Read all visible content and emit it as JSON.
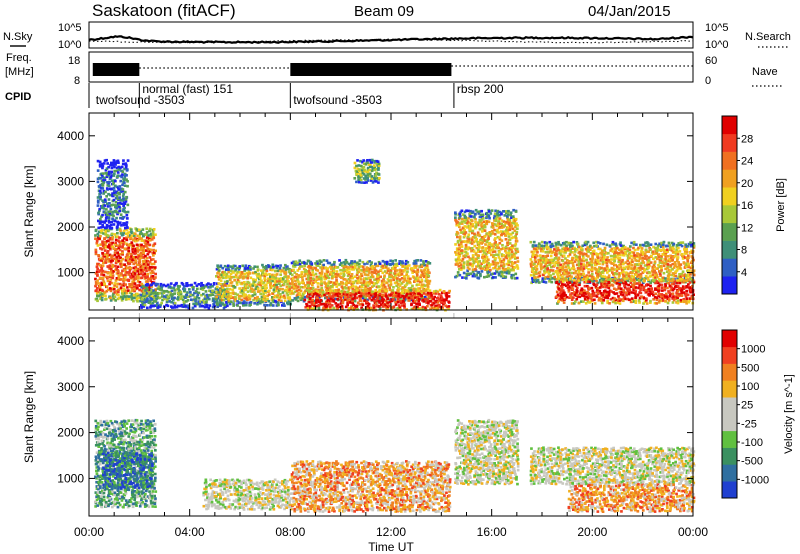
{
  "header": {
    "station": "Saskatoon (fitACF)",
    "beam": "Beam 09",
    "date": "04/Jan/2015"
  },
  "aux_panel": {
    "nsky_label": "N.Sky",
    "nsky_ticks": [
      "10^5",
      "10^0"
    ],
    "nsearch_label": "N.Search",
    "nsearch_ticks": [
      "10^5",
      "10^0"
    ],
    "freq_label_1": "Freq.",
    "freq_label_2": "[MHz]",
    "freq_ticks": [
      "18",
      "8"
    ],
    "nave_label": "Nave",
    "nave_ticks": [
      "60",
      "0"
    ],
    "cpid_label": "CPID"
  },
  "cpid_segments": [
    {
      "label": "twofsound -3503",
      "start_hour": 0.0
    },
    {
      "label": "normal (fast) 151",
      "start_hour": 2.0
    },
    {
      "label": "twofsound -3503",
      "start_hour": 8.0
    },
    {
      "label": "rbsp 200",
      "start_hour": 14.5
    }
  ],
  "chart_data": [
    {
      "type": "heatmap",
      "title": "Power",
      "xlabel": "",
      "ylabel": "Slant Range [km]",
      "xlim_hours": [
        0,
        24
      ],
      "ylim_km": [
        180,
        4500
      ],
      "y_ticks": [
        1000,
        2000,
        3000,
        4000
      ],
      "colorbar": {
        "label": "Power [dB]",
        "ticks": [
          "4",
          "8",
          "12",
          "16",
          "20",
          "24",
          "28"
        ],
        "colors": [
          "#1e22f0",
          "#2f5fc4",
          "#3f8f78",
          "#5aa050",
          "#a8c838",
          "#f0d020",
          "#f0a020",
          "#f07020",
          "#f03a20",
          "#e00000"
        ]
      },
      "regions": [
        {
          "x0": 0.2,
          "x1": 2.6,
          "y0": 400,
          "y1": 2000,
          "level": 0.78
        },
        {
          "x0": 0.3,
          "x1": 1.5,
          "y0": 2000,
          "y1": 3500,
          "level": 0.2
        },
        {
          "x0": 2.0,
          "x1": 5.5,
          "y0": 250,
          "y1": 800,
          "level": 0.3
        },
        {
          "x0": 5.0,
          "x1": 8.0,
          "y0": 300,
          "y1": 1200,
          "level": 0.55
        },
        {
          "x0": 8.0,
          "x1": 13.5,
          "y0": 400,
          "y1": 1300,
          "level": 0.6
        },
        {
          "x0": 8.5,
          "x1": 14.3,
          "y0": 200,
          "y1": 650,
          "level": 0.92
        },
        {
          "x0": 10.5,
          "x1": 11.5,
          "y0": 3000,
          "y1": 3500,
          "level": 0.4
        },
        {
          "x0": 14.5,
          "x1": 17.0,
          "y0": 900,
          "y1": 2400,
          "level": 0.6
        },
        {
          "x0": 17.5,
          "x1": 24.0,
          "y0": 800,
          "y1": 1700,
          "level": 0.62
        },
        {
          "x0": 18.5,
          "x1": 24.0,
          "y0": 350,
          "y1": 900,
          "level": 0.9
        }
      ]
    },
    {
      "type": "heatmap",
      "title": "Velocity",
      "xlabel": "Time UT",
      "ylabel": "Slant Range [km]",
      "xlim_hours": [
        0,
        24
      ],
      "ylim_km": [
        180,
        4500
      ],
      "y_ticks": [
        1000,
        2000,
        3000,
        4000
      ],
      "x_ticks": [
        "00:00",
        "04:00",
        "08:00",
        "12:00",
        "16:00",
        "20:00",
        "00:00"
      ],
      "colorbar": {
        "label": "Velocity [m s^-1]",
        "ticks": [
          "1000",
          "500",
          "100",
          "25",
          "-25",
          "-100",
          "-500",
          "-1000"
        ],
        "colors": [
          "#2040d0",
          "#2f6fa0",
          "#3a9060",
          "#60c040",
          "#c8c8c0",
          "#c8c8c0",
          "#f0b020",
          "#f08020",
          "#f04020",
          "#e00000"
        ]
      },
      "regions": [
        {
          "x0": 0.2,
          "x1": 2.6,
          "y0": 400,
          "y1": 2300,
          "level": 0.3
        },
        {
          "x0": 0.5,
          "x1": 2.5,
          "y0": 800,
          "y1": 1600,
          "level": 0.15
        },
        {
          "x0": 4.5,
          "x1": 8.0,
          "y0": 350,
          "y1": 1000,
          "level": 0.5
        },
        {
          "x0": 8.0,
          "x1": 14.3,
          "y0": 300,
          "y1": 1400,
          "level": 0.68
        },
        {
          "x0": 14.5,
          "x1": 17.0,
          "y0": 900,
          "y1": 2300,
          "level": 0.5
        },
        {
          "x0": 17.5,
          "x1": 24.0,
          "y0": 900,
          "y1": 1700,
          "level": 0.5
        },
        {
          "x0": 19.0,
          "x1": 24.0,
          "y0": 300,
          "y1": 900,
          "level": 0.7
        }
      ]
    }
  ]
}
